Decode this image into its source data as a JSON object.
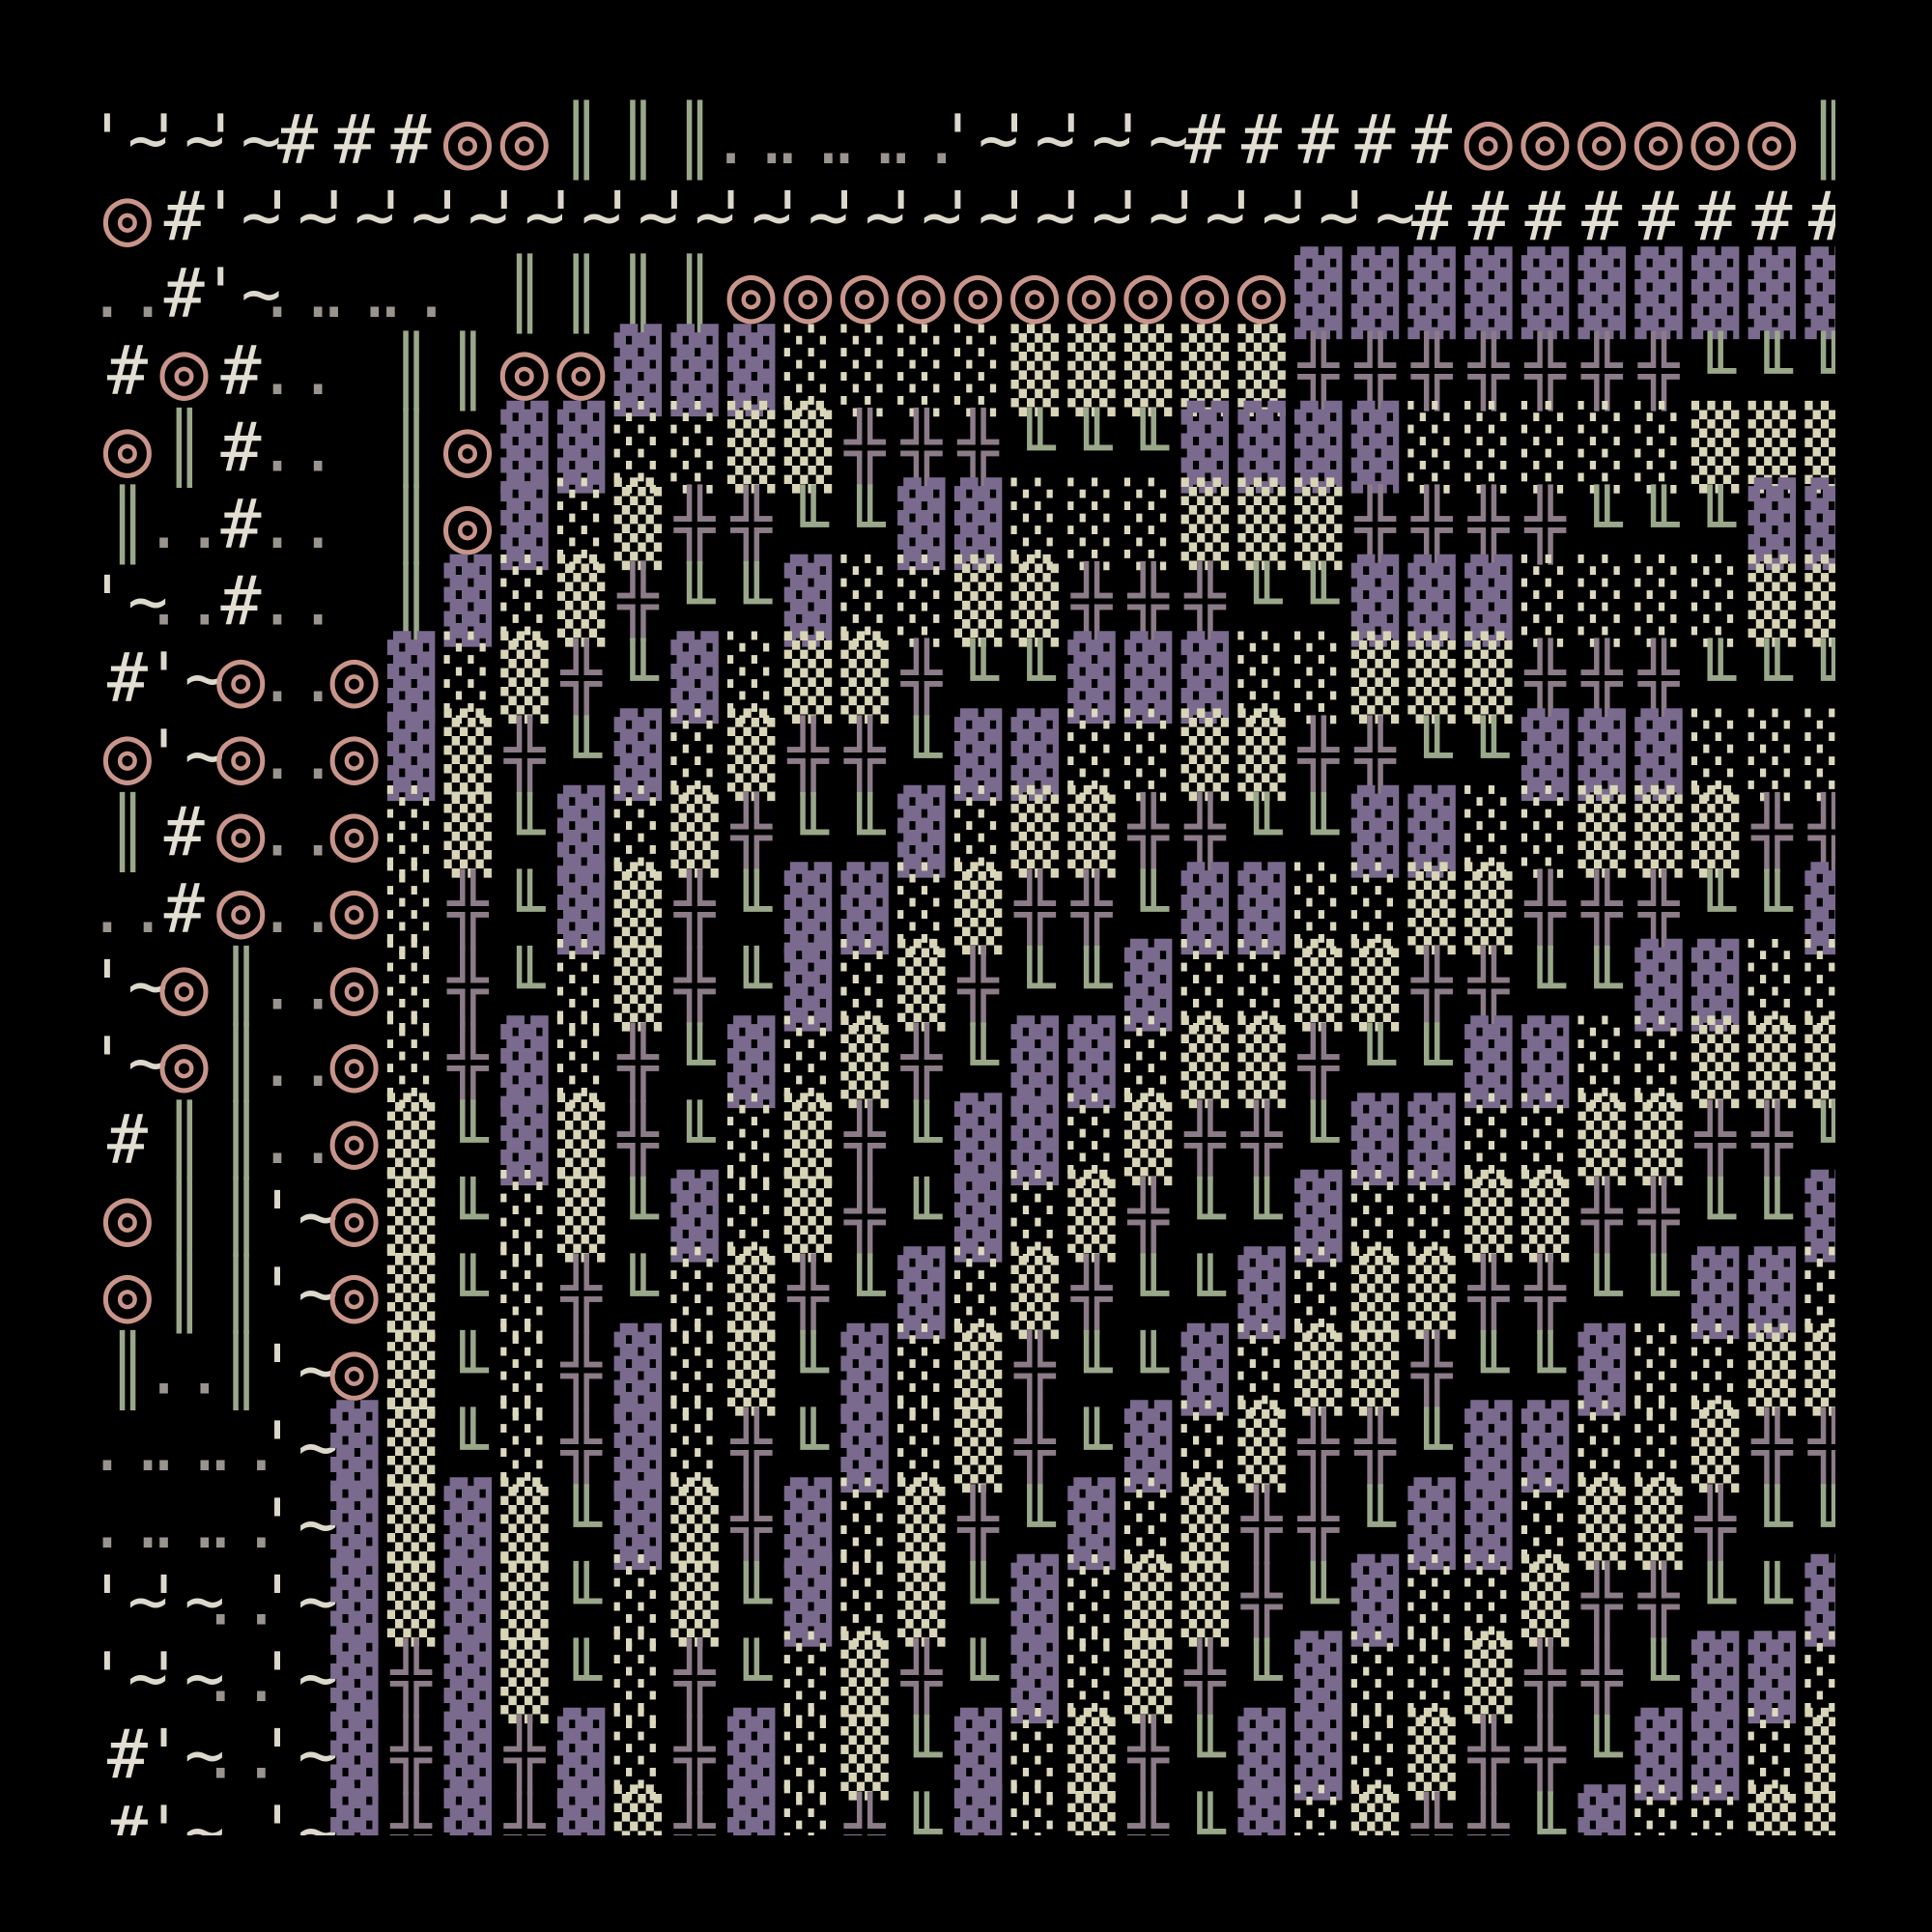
{
  "grid": {
    "rows": [
      [
        "'~",
        "'~",
        "'~",
        "#",
        "#",
        "#",
        "◎",
        "◎",
        "║",
        "║",
        "║",
        "..",
        "..",
        "..",
        "..",
        "'~",
        "'~",
        "'~",
        "'~",
        "#",
        "#",
        "#",
        "#",
        "#",
        "◎",
        "◎",
        "◎",
        "◎",
        "◎",
        "◎",
        "║"
      ],
      [
        "◎",
        "#",
        "'~",
        "'~",
        "'~",
        "'~",
        "'~",
        "'~",
        "'~",
        "'~",
        "'~",
        "'~",
        "'~",
        "'~",
        "'~",
        "'~",
        "'~",
        "'~",
        "'~",
        "'~",
        "'~",
        "'~",
        "'~",
        "#",
        "#",
        "#",
        "#",
        "#",
        "#",
        "#",
        "#"
      ],
      [
        "..",
        "#",
        "'~",
        "..",
        "..",
        "..",
        null,
        "║",
        "║",
        "║",
        "║",
        "◎",
        "◎",
        "◎",
        "◎",
        "◎",
        "◎",
        "◎",
        "◎",
        "◎",
        "◎",
        "▓",
        "▓",
        "▓",
        "▓",
        "▓",
        "▓",
        "▓",
        "▓",
        "▓",
        "▓"
      ],
      [
        "#",
        "◎",
        "#",
        "..",
        null,
        "║",
        "║",
        "◎",
        "◎",
        "▓",
        "▓",
        "▓",
        "░",
        "░",
        "░",
        "░",
        "▒",
        "▒",
        "▒",
        "▒",
        "▒",
        "╬",
        "╬",
        "╬",
        "╬",
        "╬",
        "╬",
        "╬",
        "╙",
        "╙",
        "╙"
      ],
      [
        "◎",
        "║",
        "#",
        "..",
        null,
        "║",
        "◎",
        "▓",
        "▓",
        "░",
        "░",
        "▒",
        "▒",
        "╬",
        "╬",
        "╬",
        "╙",
        "╙",
        "╙",
        "▓",
        "▓",
        "▓",
        "▓",
        "░",
        "░",
        "░",
        "░",
        "░",
        "▒",
        "▒",
        "▒"
      ],
      [
        "║",
        "..",
        "#",
        "..",
        null,
        "║",
        "◎",
        "▓",
        "░",
        "▒",
        "╬",
        "╬",
        "╙",
        "╙",
        "▓",
        "▓",
        "░",
        "░",
        "░",
        "▒",
        "▒",
        "▒",
        "╬",
        "╬",
        "╬",
        "╬",
        "╙",
        "╙",
        "╙",
        "▓",
        "▓"
      ],
      [
        "'~",
        "..",
        "#",
        "..",
        null,
        "║",
        "▓",
        "░",
        "▒",
        "╬",
        "╙",
        "╙",
        "▓",
        "░",
        "░",
        "▒",
        "▒",
        "╬",
        "╬",
        "╬",
        "╙",
        "╙",
        "▓",
        "▓",
        "▓",
        "░",
        "░",
        "░",
        "░",
        "▒",
        "▒"
      ],
      [
        "#",
        "'~",
        "◎",
        "..",
        "◎",
        "▓",
        "░",
        "▒",
        "╬",
        "╙",
        "▓",
        "░",
        "▒",
        "▒",
        "╬",
        "╙",
        "╙",
        "▓",
        "▓",
        "▓",
        "░",
        "░",
        "▒",
        "▒",
        "▒",
        "╬",
        "╬",
        "╬",
        "╙",
        "╙",
        "╙"
      ],
      [
        "◎",
        "'~",
        "◎",
        "..",
        "◎",
        "▓",
        "▒",
        "╬",
        "╙",
        "▓",
        "░",
        "▒",
        "╬",
        "╬",
        "╙",
        "▓",
        "▓",
        "░",
        "░",
        "▒",
        "▒",
        "╬",
        "╬",
        "╙",
        "╙",
        "▓",
        "▓",
        "▓",
        "░",
        "░",
        "░"
      ],
      [
        "║",
        "#",
        "◎",
        "..",
        "◎",
        "░",
        "▒",
        "╙",
        "▓",
        "░",
        "▒",
        "╬",
        "╙",
        "╙",
        "▓",
        "░",
        "▒",
        "▒",
        "╬",
        "╬",
        "╙",
        "╙",
        "▓",
        "▓",
        "░",
        "░",
        "▒",
        "▒",
        "▒",
        "╬",
        "╬"
      ],
      [
        "..",
        "#",
        "◎",
        "..",
        "◎",
        "░",
        "╬",
        "╙",
        "▓",
        "▒",
        "╬",
        "╙",
        "▓",
        "▓",
        "░",
        "▒",
        "╬",
        "╬",
        "╙",
        "▓",
        "▓",
        "░",
        "░",
        "▒",
        "▒",
        "╬",
        "╬",
        "╬",
        "╙",
        "╙",
        "▓"
      ],
      [
        "'~",
        "◎",
        "║",
        "..",
        "◎",
        "░",
        "╬",
        "╙",
        "░",
        "▒",
        "╬",
        "╙",
        "▓",
        "░",
        "▒",
        "╬",
        "╙",
        "╙",
        "▓",
        "░",
        "░",
        "▒",
        "▒",
        "╬",
        "╬",
        "╙",
        "╙",
        "▓",
        "▓",
        "░",
        "░"
      ],
      [
        "'~",
        "◎",
        "║",
        "..",
        "◎",
        "░",
        "╬",
        "▓",
        "░",
        "╬",
        "╙",
        "▓",
        "░",
        "▒",
        "╬",
        "╙",
        "▓",
        "▓",
        "░",
        "▒",
        "▒",
        "╬",
        "╙",
        "╙",
        "▓",
        "▓",
        "░",
        "░",
        "▒",
        "▒",
        "▒"
      ],
      [
        "#",
        "║",
        "║",
        "..",
        "◎",
        "▒",
        "╙",
        "▓",
        "▒",
        "╬",
        "╙",
        "░",
        "▒",
        "╬",
        "╙",
        "▓",
        "▓",
        "░",
        "▒",
        "╬",
        "╬",
        "╙",
        "▓",
        "▓",
        "░",
        "░",
        "▒",
        "▒",
        "╬",
        "╬",
        "╙"
      ],
      [
        "◎",
        "║",
        "║",
        "'~",
        "◎",
        "▒",
        "╙",
        "░",
        "▒",
        "╙",
        "▓",
        "░",
        "▒",
        "╬",
        "╙",
        "▓",
        "░",
        "▒",
        "╬",
        "╙",
        "╙",
        "▓",
        "░",
        "░",
        "▒",
        "▒",
        "╬",
        "╬",
        "╙",
        "╙",
        "▓"
      ],
      [
        "◎",
        "║",
        "║",
        "'~",
        "◎",
        "▒",
        "╙",
        "░",
        "╬",
        "╙",
        "░",
        "▒",
        "╬",
        "╙",
        "▓",
        "░",
        "▒",
        "╬",
        "╙",
        "╙",
        "▓",
        "░",
        "▒",
        "▒",
        "╬",
        "╬",
        "╙",
        "╙",
        "▓",
        "▓",
        "░"
      ],
      [
        "║",
        "..",
        "║",
        "'~",
        "◎",
        "▒",
        "╙",
        "░",
        "╬",
        "▓",
        "░",
        "▒",
        "╙",
        "▓",
        "░",
        "▒",
        "╬",
        "╙",
        "╙",
        "▓",
        "░",
        "▒",
        "▒",
        "╬",
        "╙",
        "╙",
        "▓",
        "░",
        "░",
        "▒",
        "▒"
      ],
      [
        "..",
        "..",
        "..",
        "'~",
        "▓",
        "▒",
        "╙",
        "░",
        "╬",
        "▓",
        "░",
        "╬",
        "╙",
        "▓",
        "░",
        "▒",
        "╬",
        "╙",
        "▓",
        "░",
        "▒",
        "╬",
        "╬",
        "╙",
        "▓",
        "▓",
        "░",
        "░",
        "▒",
        "╬",
        "╬"
      ],
      [
        "..",
        "..",
        "..",
        "'~",
        "▓",
        "▒",
        "▓",
        "▒",
        "╙",
        "▓",
        "▒",
        "╬",
        "▓",
        "░",
        "▒",
        "╬",
        "╙",
        "▓",
        "░",
        "▒",
        "╬",
        "╬",
        "╙",
        "▓",
        "▓",
        "░",
        "▒",
        "▒",
        "╬",
        "╙",
        "╙"
      ],
      [
        "'~",
        "'~",
        "..",
        "'~",
        "▓",
        "▒",
        "▓",
        "▒",
        "╙",
        "░",
        "▒",
        "╙",
        "▓",
        "░",
        "▒",
        "╙",
        "▓",
        "░",
        "▒",
        "▒",
        "╬",
        "╙",
        "▓",
        "░",
        "░",
        "▒",
        "╬",
        "╬",
        "╙",
        "╙",
        "▓"
      ],
      [
        "'~",
        "'~",
        "..",
        "'~",
        "▓",
        "╬",
        "▓",
        "▒",
        "╙",
        "░",
        "╬",
        "╙",
        "░",
        "▒",
        "╬",
        "╙",
        "▓",
        "░",
        "▒",
        "╬",
        "╙",
        "▓",
        "░",
        "░",
        "▒",
        "╬",
        "╬",
        "╙",
        "▓",
        "▓",
        "░"
      ],
      [
        "#",
        "'~",
        "..",
        "'~",
        "▓",
        "╬",
        "▓",
        "╬",
        "▓",
        "░",
        "╬",
        "▓",
        "░",
        "▒",
        "╙",
        "▓",
        "░",
        "▒",
        "╬",
        "╙",
        "▓",
        "▓",
        "░",
        "▒",
        "╬",
        "╬",
        "╙",
        "▓",
        "▓",
        "░",
        "▒"
      ],
      [
        "#",
        "'~",
        "..",
        "'~",
        "▓",
        "╬",
        "▓",
        "╬",
        "▓",
        "▒",
        "╬",
        "▓",
        "░",
        "╬",
        "╙",
        "▓",
        "░",
        "▒",
        "╬",
        "╙",
        "▓",
        "░",
        "▒",
        "╬",
        "╬",
        "╙",
        "▓",
        "░",
        "░",
        "▒",
        "▒"
      ]
    ]
  }
}
